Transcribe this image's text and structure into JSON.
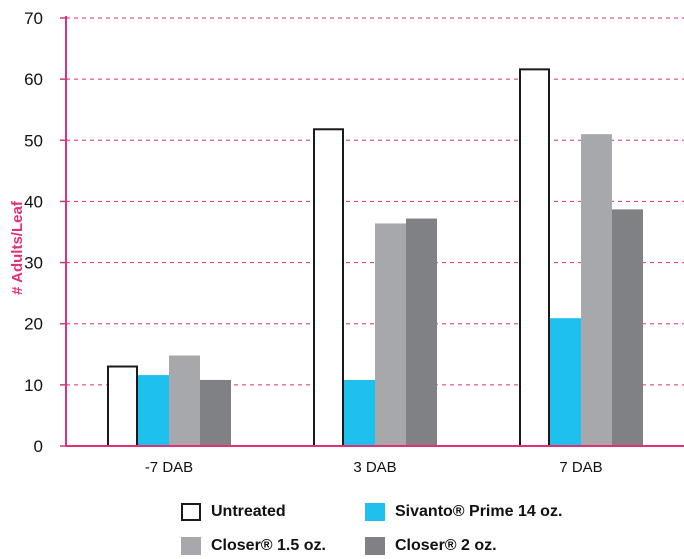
{
  "chart_data": {
    "type": "bar",
    "categories": [
      "-7 DAB",
      "3 DAB",
      "7 DAB"
    ],
    "series": [
      {
        "name": "Untreated",
        "values": [
          13,
          51.8,
          61.6
        ],
        "color": "#ffffff",
        "stroke": "#1a1a1a"
      },
      {
        "name": "Sivanto® Prime 14 oz.",
        "values": [
          11.6,
          10.8,
          20.9
        ],
        "color": "#1ec0ee"
      },
      {
        "name": "Closer® 1.5 oz.",
        "values": [
          14.8,
          36.4,
          51
        ],
        "color": "#a7a8ab"
      },
      {
        "name": "Closer® 2 oz.",
        "values": [
          10.8,
          37.2,
          38.7
        ],
        "color": "#808185"
      }
    ],
    "ylabel": "# Adults/Leaf",
    "xlabel": "",
    "ylim": [
      0,
      70
    ],
    "yticks": [
      "0",
      "10",
      "20",
      "30",
      "40",
      "50",
      "60",
      "70"
    ],
    "grid": true,
    "grid_color": "#e0307a",
    "axis_color": "#e0307a",
    "legend_position": "bottom"
  }
}
